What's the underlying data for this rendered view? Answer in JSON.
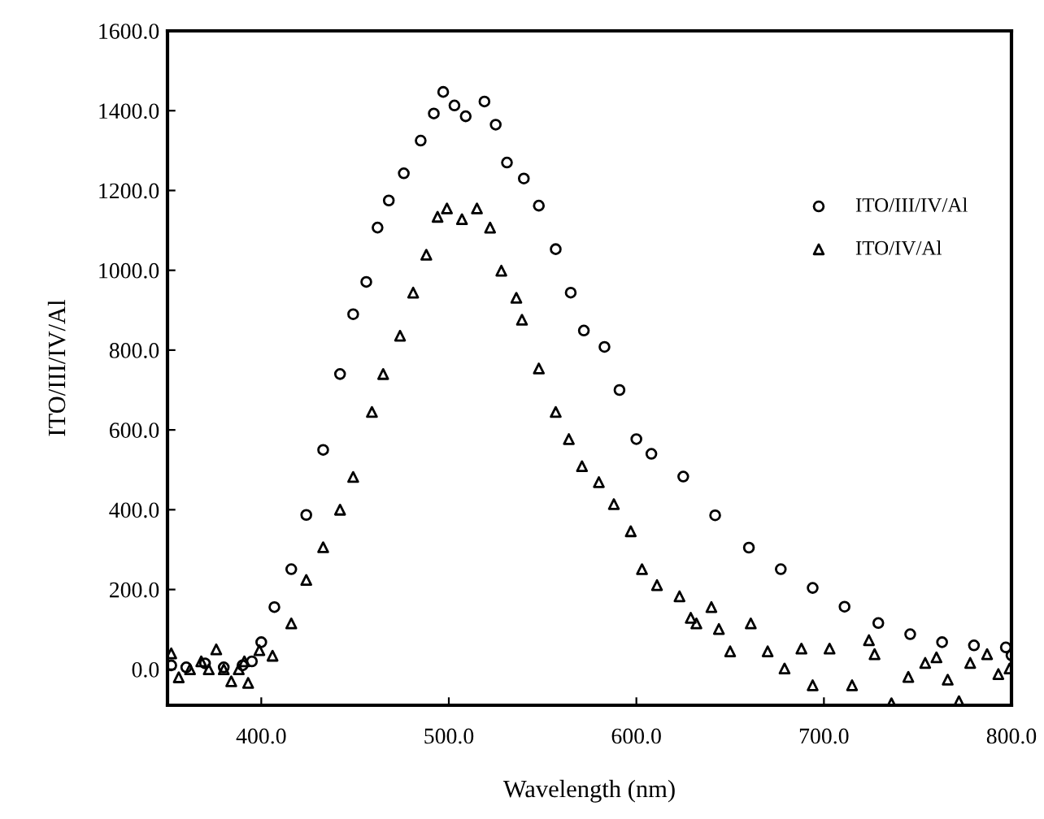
{
  "chart_data": {
    "type": "scatter",
    "xlabel": "Wavelength (nm)",
    "ylabel": "ITO/III/IV/Al",
    "xlim": [
      350,
      800
    ],
    "ylim": [
      -90,
      1600
    ],
    "xticks": [
      {
        "value": 400,
        "label": "400.0"
      },
      {
        "value": 500,
        "label": "500.0"
      },
      {
        "value": 600,
        "label": "600.0"
      },
      {
        "value": 700,
        "label": "700.0"
      },
      {
        "value": 800,
        "label": "800.0"
      }
    ],
    "yticks": [
      {
        "value": 0,
        "label": "0.0"
      },
      {
        "value": 200,
        "label": "200.0"
      },
      {
        "value": 400,
        "label": "400.0"
      },
      {
        "value": 600,
        "label": "600.0"
      },
      {
        "value": 800,
        "label": "800.0"
      },
      {
        "value": 1000,
        "label": "1000.0"
      },
      {
        "value": 1200,
        "label": "1200.0"
      },
      {
        "value": 1400,
        "label": "1400.0"
      },
      {
        "value": 1600,
        "label": "1600.0"
      }
    ],
    "grid": false,
    "legend": "top right",
    "series": [
      {
        "name": "ITO/III/IV/Al",
        "color": "#000000",
        "marker": "circle",
        "x": [
          352,
          360,
          370,
          380,
          390,
          395,
          400,
          407,
          416,
          424,
          433,
          442,
          449,
          456,
          462,
          468,
          476,
          485,
          492,
          497,
          503,
          509,
          519,
          525,
          531,
          540,
          548,
          557,
          565,
          572,
          583,
          591,
          600,
          608,
          625,
          642,
          660,
          677,
          694,
          711,
          729,
          746,
          763,
          780,
          797,
          800
        ],
        "values": [
          10,
          5,
          15,
          5,
          10,
          20,
          68,
          156,
          251,
          387,
          550,
          740,
          890,
          971,
          1107,
          1175,
          1243,
          1325,
          1393,
          1447,
          1413,
          1386,
          1423,
          1365,
          1270,
          1230,
          1162,
          1053,
          944,
          849,
          808,
          700,
          577,
          540,
          483,
          386,
          305,
          251,
          204,
          157,
          116,
          88,
          68,
          60,
          55,
          35
        ]
      },
      {
        "name": "ITO/IV/Al",
        "color": "#000000",
        "marker": "triangle",
        "x": [
          352,
          356,
          362,
          368,
          372,
          376,
          380,
          384,
          388,
          391,
          393,
          399,
          406,
          416,
          424,
          433,
          442,
          449,
          459,
          465,
          474,
          481,
          488,
          494,
          499,
          507,
          515,
          522,
          528,
          536,
          539,
          548,
          557,
          564,
          571,
          580,
          588,
          597,
          603,
          611,
          623,
          629,
          632,
          640,
          644,
          650,
          661,
          670,
          679,
          688,
          694,
          703,
          715,
          724,
          727,
          736,
          745,
          754,
          760,
          766,
          772,
          778,
          787,
          793,
          799
        ],
        "values": [
          40,
          -20,
          0,
          20,
          0,
          50,
          0,
          -30,
          0,
          20,
          -34,
          48,
          34,
          115,
          224,
          306,
          400,
          482,
          645,
          740,
          836,
          944,
          1039,
          1134,
          1155,
          1128,
          1155,
          1107,
          999,
          931,
          876,
          754,
          645,
          577,
          509,
          469,
          414,
          346,
          251,
          211,
          183,
          129,
          115,
          156,
          101,
          45,
          115,
          45,
          2,
          52,
          -40,
          52,
          -40,
          73,
          38,
          -85,
          -19,
          16,
          30,
          -26,
          -80,
          16,
          38,
          -12,
          2
        ]
      }
    ]
  }
}
